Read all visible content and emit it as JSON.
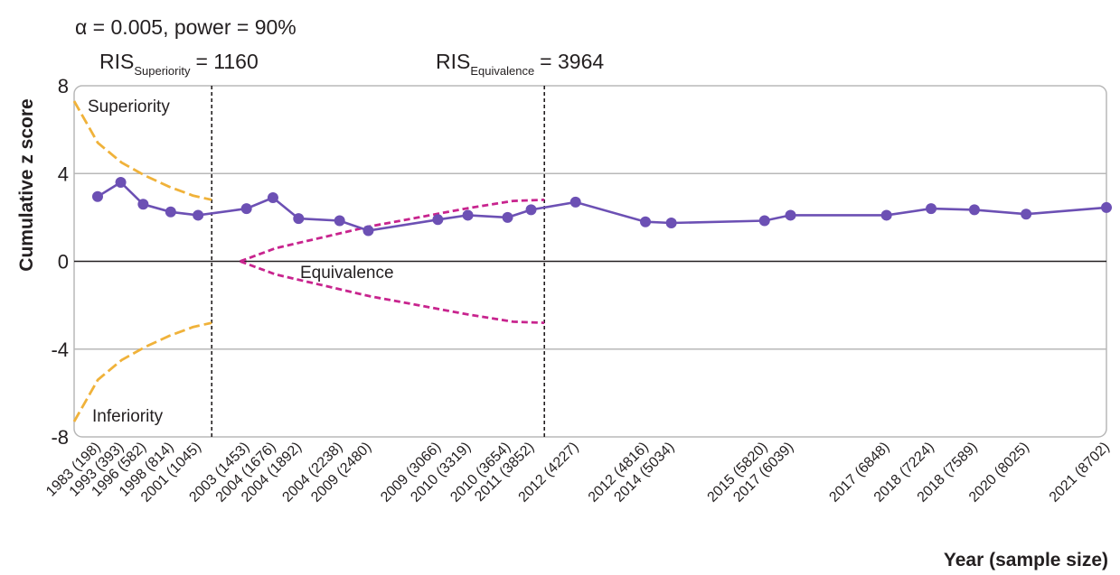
{
  "chart_data": {
    "type": "line",
    "header": "α = 0.005, power = 90%",
    "ylabel": "Cumulative z score",
    "xlabel": "Year (sample size)",
    "ylim": [
      -8,
      8
    ],
    "yticks": [
      "8",
      "4",
      "0",
      "-4",
      "-8"
    ],
    "xlim": [
      0,
      8702
    ],
    "grid": true,
    "ris": [
      {
        "base": "RIS",
        "subscript": "Superiority",
        "value_text": "= 1160",
        "sample_size": 1160
      },
      {
        "base": "RIS",
        "subscript": "Equivalence",
        "value_text": "= 3964",
        "sample_size": 3964
      }
    ],
    "annotations": {
      "superiority": "Superiority",
      "inferiority": "Inferiority",
      "equivalence": "Equivalence"
    },
    "x": [
      198,
      393,
      582,
      814,
      1045,
      1453,
      1676,
      1892,
      2238,
      2480,
      3066,
      3319,
      3654,
      3852,
      4227,
      4816,
      5034,
      5820,
      6039,
      6848,
      7224,
      7589,
      8025,
      8702
    ],
    "x_labels": [
      "1983 (198)",
      "1993 (393)",
      "1996 (582)",
      "1998 (814)",
      "2001 (1045)",
      "2003 (1453)",
      "2004 (1676)",
      "2004 (1892)",
      "2004 (2238)",
      "2009 (2480)",
      "2009 (3066)",
      "2010 (3319)",
      "2010 (3654)",
      "2011 (3852)",
      "2012 (4227)",
      "2012 (4816)",
      "2014 (5034)",
      "2015 (5820)",
      "2017 (6039)",
      "2017 (6848)",
      "2018 (7224)",
      "2018 (7589)",
      "2020 (8025)",
      "2021 (8702)"
    ],
    "series": [
      {
        "values": [
          2.95,
          3.6,
          2.6,
          2.25,
          2.1,
          2.4,
          2.9,
          1.95,
          1.85,
          1.4,
          1.9,
          2.1,
          2.0,
          2.35,
          2.7,
          1.8,
          1.75,
          1.85,
          2.1,
          2.1,
          2.4,
          2.35,
          2.15,
          2.45
        ]
      }
    ],
    "boundaries": {
      "superiority": {
        "x": [
          0,
          200,
          400,
          600,
          800,
          1000,
          1160
        ],
        "y": [
          7.3,
          5.4,
          4.5,
          3.9,
          3.4,
          3.0,
          2.8
        ]
      },
      "inferiority": {
        "x": [
          0,
          200,
          400,
          600,
          800,
          1000,
          1160
        ],
        "y": [
          -7.3,
          -5.4,
          -4.5,
          -3.9,
          -3.4,
          -3.0,
          -2.8
        ]
      },
      "equivalence_upper": {
        "x": [
          1400,
          1700,
          2100,
          2500,
          2900,
          3300,
          3700,
          3964
        ],
        "y": [
          0,
          0.6,
          1.1,
          1.6,
          2.0,
          2.4,
          2.75,
          2.8
        ]
      },
      "equivalence_lower": {
        "x": [
          1400,
          1700,
          2100,
          2500,
          2900,
          3300,
          3700,
          3964
        ],
        "y": [
          0,
          -0.6,
          -1.1,
          -1.6,
          -2.0,
          -2.4,
          -2.75,
          -2.8
        ]
      }
    },
    "colors": {
      "series": "#6c50b4",
      "futility_boundary": "#f0b23a",
      "equivalence_boundary": "#c8248e",
      "grid": "#b8b8b8",
      "zero_line": "#231f20",
      "ris_line": "#231f20"
    }
  }
}
